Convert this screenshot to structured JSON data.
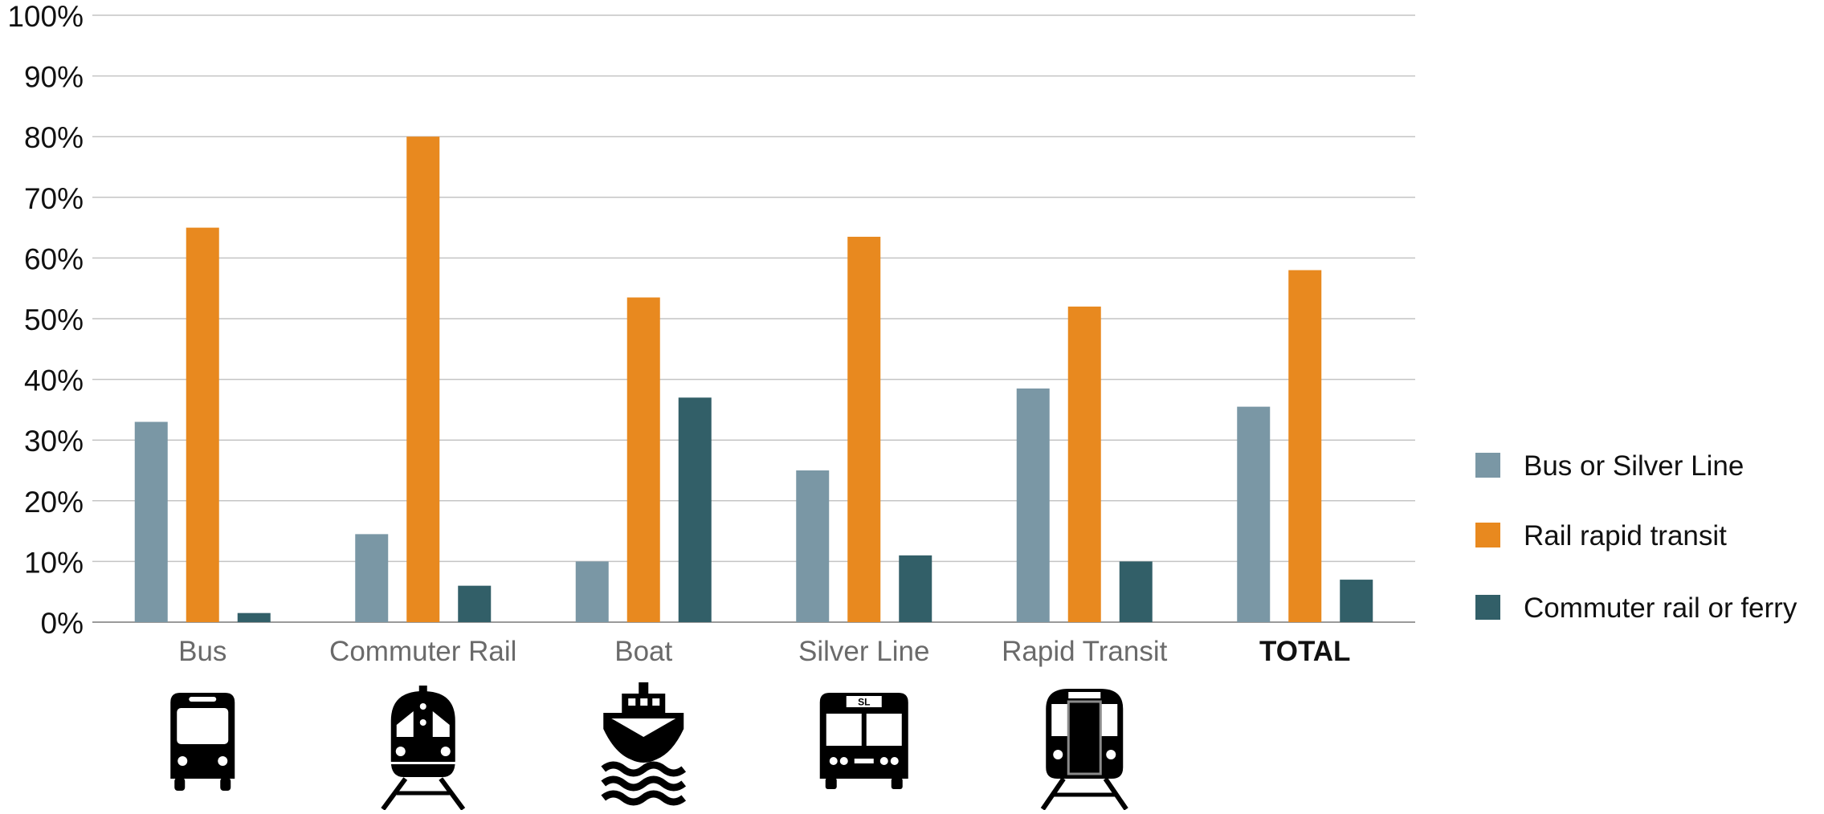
{
  "chart_data": {
    "type": "bar",
    "title": "",
    "xlabel": "",
    "ylabel": "",
    "ylim": [
      0,
      100
    ],
    "y_ticks": [
      "0%",
      "10%",
      "20%",
      "30%",
      "40%",
      "50%",
      "60%",
      "70%",
      "80%",
      "90%",
      "100%"
    ],
    "grid": true,
    "legend_position": "right",
    "categories": [
      "Bus",
      "Commuter Rail",
      "Boat",
      "Silver Line",
      "Rapid Transit",
      "TOTAL"
    ],
    "category_icons": [
      "bus-icon",
      "commuter-rail-train-icon",
      "ferry-boat-icon",
      "silver-line-bus-icon",
      "rapid-transit-train-icon",
      ""
    ],
    "silver_line_badge": "SL",
    "series": [
      {
        "name": "Bus or Silver Line",
        "color": "#7a97a5",
        "values": [
          33,
          14.5,
          10,
          25,
          38.5,
          35.5
        ]
      },
      {
        "name": "Rail rapid transit",
        "color": "#e8891f",
        "values": [
          65,
          80,
          53.5,
          63.5,
          52,
          58
        ]
      },
      {
        "name": "Commuter rail or ferry",
        "color": "#325f68",
        "values": [
          1.5,
          6,
          37,
          11,
          10,
          7
        ]
      }
    ]
  }
}
